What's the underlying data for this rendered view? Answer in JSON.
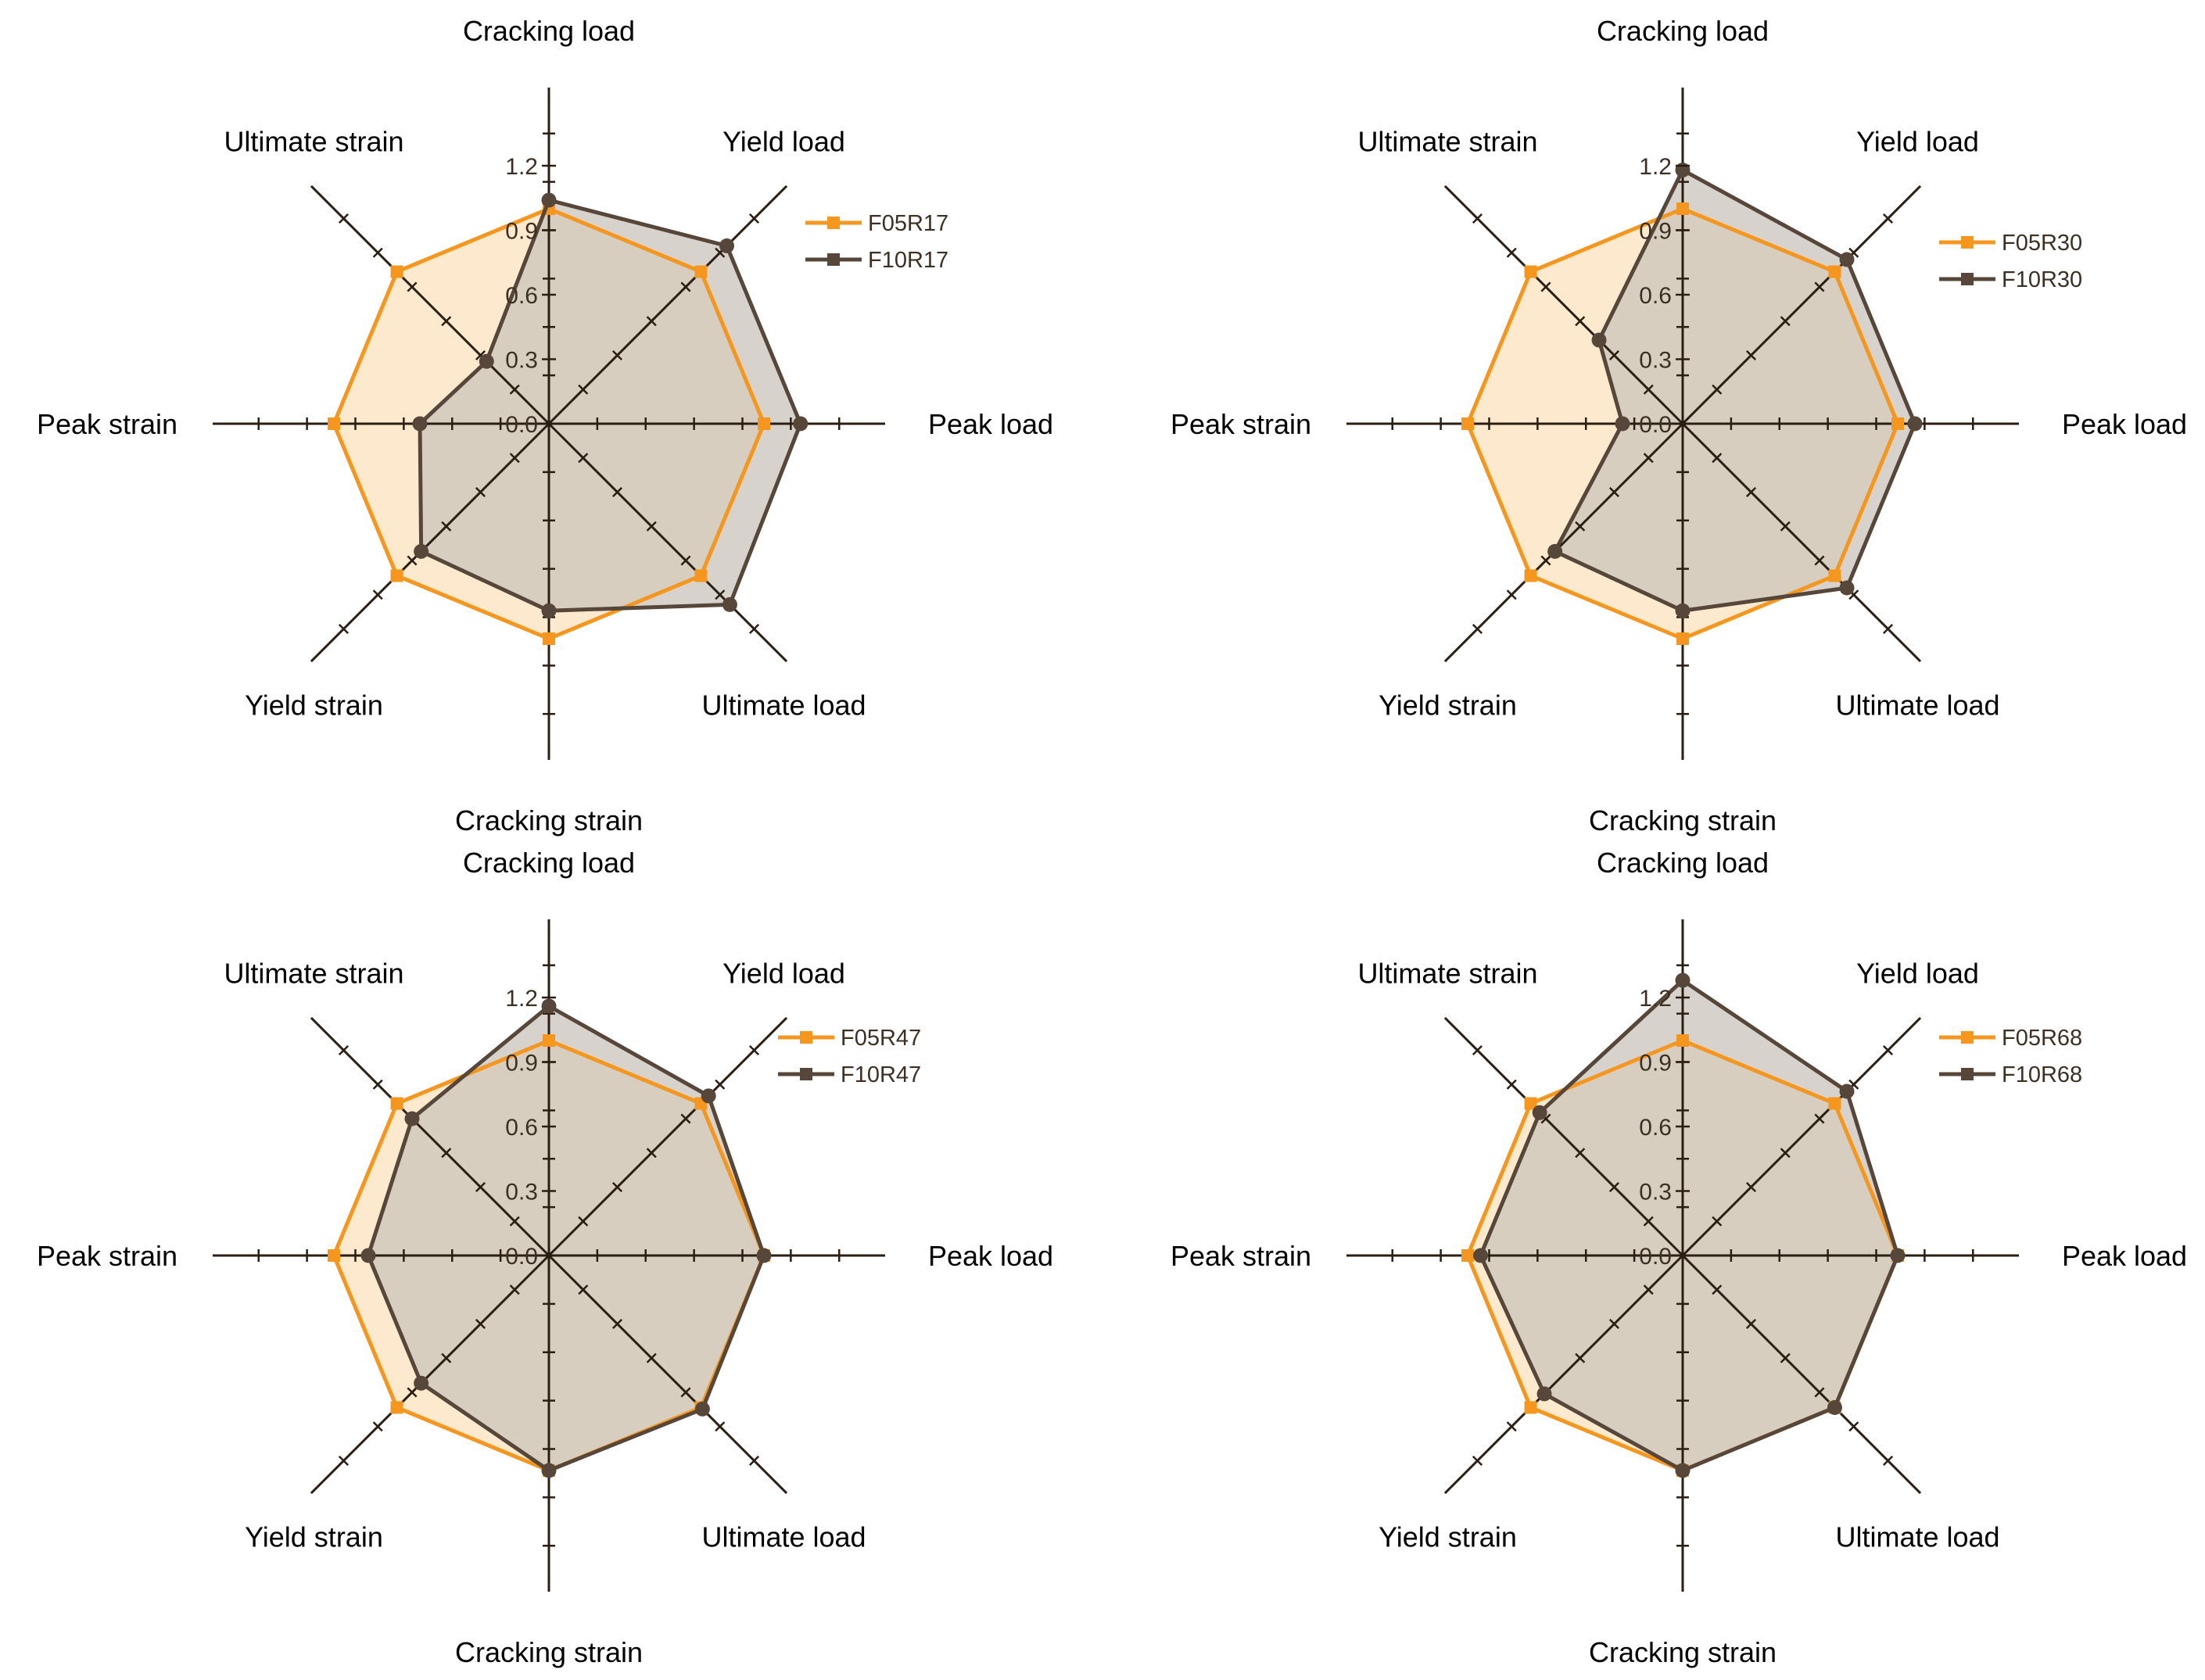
{
  "chart_data": [
    {
      "type": "radar",
      "categories": [
        "Cracking load",
        "Yield load",
        "Peak load",
        "Ultimate load",
        "Cracking strain",
        "Yield strain",
        "Peak strain",
        "Ultimate strain"
      ],
      "rlim": [
        0,
        1.2
      ],
      "ticks": [
        "0.0",
        "0.3",
        "0.6",
        "0.9",
        "1.2"
      ],
      "legend_position": "right",
      "series": [
        {
          "name": "F05R17",
          "color": "#f5961e",
          "values": [
            1.0,
            1.0,
            1.0,
            1.0,
            1.0,
            1.0,
            1.0,
            1.0
          ]
        },
        {
          "name": "F10R17",
          "color": "#56473a",
          "values": [
            1.04,
            1.17,
            1.17,
            1.19,
            0.87,
            0.84,
            0.6,
            0.41
          ]
        }
      ]
    },
    {
      "type": "radar",
      "categories": [
        "Cracking load",
        "Yield load",
        "Peak load",
        "Ultimate load",
        "Cracking strain",
        "Yield strain",
        "Peak strain",
        "Ultimate strain"
      ],
      "rlim": [
        0,
        1.2
      ],
      "ticks": [
        "0.0",
        "0.3",
        "0.6",
        "0.9",
        "1.2"
      ],
      "legend_position": "right",
      "series": [
        {
          "name": "F05R30",
          "color": "#f5961e",
          "values": [
            1.0,
            1.0,
            1.0,
            1.0,
            1.0,
            1.0,
            1.0,
            1.0
          ]
        },
        {
          "name": "F10R30",
          "color": "#56473a",
          "values": [
            1.18,
            1.08,
            1.08,
            1.08,
            0.87,
            0.84,
            0.28,
            0.55
          ]
        }
      ]
    },
    {
      "type": "radar",
      "categories": [
        "Cracking load",
        "Yield load",
        "Peak load",
        "Ultimate load",
        "Cracking strain",
        "Yield strain",
        "Peak strain",
        "Ultimate strain"
      ],
      "rlim": [
        0,
        1.2
      ],
      "ticks": [
        "0.0",
        "0.3",
        "0.6",
        "0.9",
        "1.2"
      ],
      "legend_position": "right",
      "series": [
        {
          "name": "F05R47",
          "color": "#f5961e",
          "values": [
            1.0,
            1.0,
            1.0,
            1.0,
            1.0,
            1.0,
            1.0,
            1.0
          ]
        },
        {
          "name": "F10R47",
          "color": "#56473a",
          "values": [
            1.16,
            1.05,
            1.0,
            1.01,
            1.0,
            0.84,
            0.84,
            0.9
          ]
        }
      ]
    },
    {
      "type": "radar",
      "categories": [
        "Cracking load",
        "Yield load",
        "Peak load",
        "Ultimate load",
        "Cracking strain",
        "Yield strain",
        "Peak strain",
        "Ultimate strain"
      ],
      "rlim": [
        0,
        1.2
      ],
      "ticks": [
        "0.0",
        "0.3",
        "0.6",
        "0.9",
        "1.2"
      ],
      "legend_position": "right",
      "series": [
        {
          "name": "F05R68",
          "color": "#f5961e",
          "values": [
            1.0,
            1.0,
            1.0,
            1.0,
            1.0,
            1.0,
            1.0,
            1.0
          ]
        },
        {
          "name": "F10R68",
          "color": "#56473a",
          "values": [
            1.28,
            1.08,
            1.0,
            1.0,
            1.0,
            0.91,
            0.94,
            0.94
          ]
        }
      ]
    }
  ]
}
